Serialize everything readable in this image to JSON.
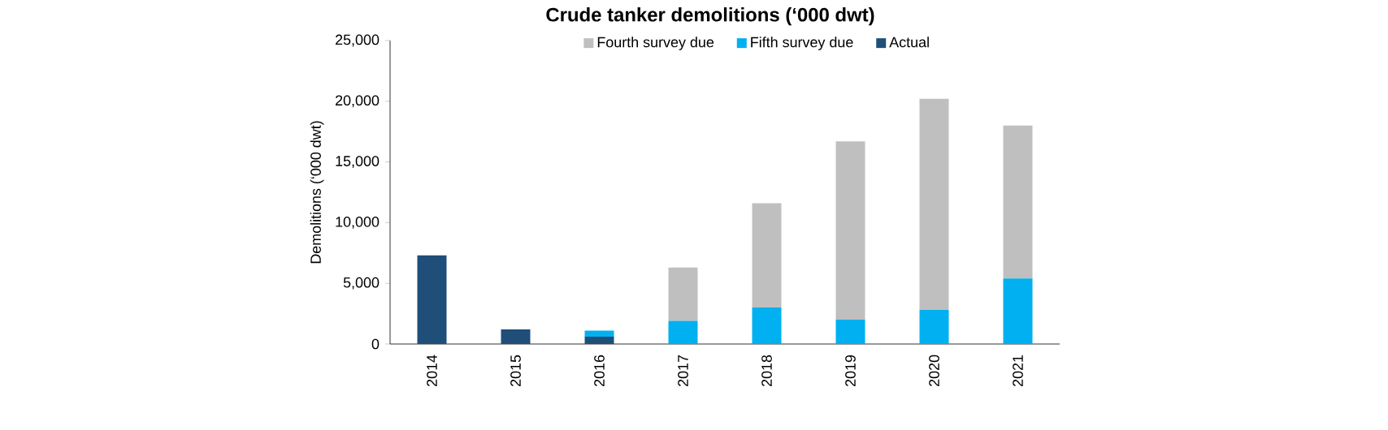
{
  "chart_data": {
    "type": "bar",
    "title": "Crude tanker demolitions  (‘000 dwt)",
    "ylabel": "Demolitions (‘000 dwt)",
    "categories": [
      "2014",
      "2015",
      "2016",
      "2017",
      "2018",
      "2019",
      "2020",
      "2021"
    ],
    "stacked": true,
    "series": [
      {
        "name": "Actual",
        "color": "#1f4e79",
        "values": [
          7300,
          1200,
          600,
          null,
          null,
          null,
          null,
          null
        ]
      },
      {
        "name": "Fifth survey due",
        "color": "#00b0f0",
        "values": [
          null,
          null,
          500,
          1900,
          3000,
          2000,
          2800,
          5400
        ]
      },
      {
        "name": "Fourth survey due",
        "color": "#bfbfbf",
        "values": [
          null,
          null,
          null,
          4400,
          8600,
          14700,
          17400,
          12600
        ]
      }
    ],
    "ylim": [
      0,
      25000
    ],
    "yticks": [
      {
        "value": 0,
        "label": "0"
      },
      {
        "value": 5000,
        "label": "5,000"
      },
      {
        "value": 10000,
        "label": "10,000"
      },
      {
        "value": 15000,
        "label": "15,000"
      },
      {
        "value": 20000,
        "label": "20,000"
      },
      {
        "value": 25000,
        "label": "25,000"
      }
    ],
    "legend": "top"
  }
}
